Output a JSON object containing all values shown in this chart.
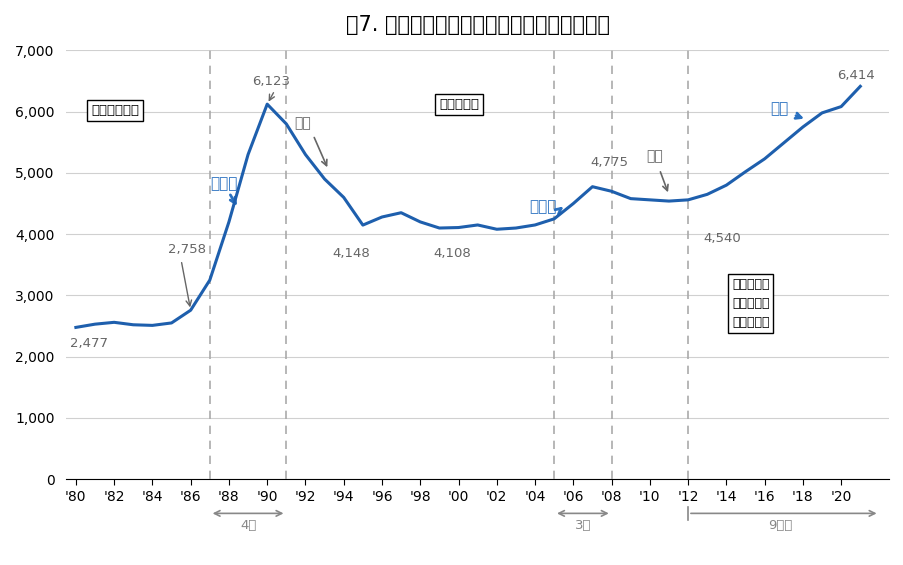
{
  "title": "図7. 首都圏・新築マンション価格の長期推移",
  "title_fontsize": 15,
  "line_color": "#1e5fad",
  "background_color": "#ffffff",
  "years": [
    1980,
    1981,
    1982,
    1983,
    1984,
    1985,
    1986,
    1987,
    1988,
    1989,
    1990,
    1991,
    1992,
    1993,
    1994,
    1995,
    1996,
    1997,
    1998,
    1999,
    2000,
    2001,
    2002,
    2003,
    2004,
    2005,
    2006,
    2007,
    2008,
    2009,
    2010,
    2011,
    2012,
    2013,
    2014,
    2015,
    2016,
    2017,
    2018,
    2019,
    2020,
    2021
  ],
  "values": [
    2477,
    2530,
    2560,
    2520,
    2510,
    2550,
    2758,
    3250,
    4200,
    5300,
    6123,
    5800,
    5300,
    4900,
    4600,
    4148,
    4280,
    4350,
    4200,
    4100,
    4108,
    4150,
    4080,
    4100,
    4150,
    4250,
    4500,
    4775,
    4700,
    4580,
    4560,
    4540,
    4560,
    4650,
    4800,
    5020,
    5230,
    5490,
    5750,
    5980,
    6083,
    6414
  ],
  "ylim": [
    0,
    7000
  ],
  "yticks": [
    0,
    1000,
    2000,
    3000,
    4000,
    5000,
    6000,
    7000
  ],
  "xtick_labels": [
    "'80",
    "'82",
    "'84",
    "'86",
    "'88",
    "'90",
    "'92",
    "'94",
    "'96",
    "'98",
    "'00",
    "'02",
    "'04",
    "'06",
    "'08",
    "'10",
    "'12",
    "'14",
    "'16",
    "'18",
    "'20"
  ],
  "xtick_years": [
    1980,
    1982,
    1984,
    1986,
    1988,
    1990,
    1992,
    1994,
    1996,
    1998,
    2000,
    2002,
    2004,
    2006,
    2008,
    2010,
    2012,
    2014,
    2016,
    2018,
    2020
  ],
  "dashed_lines_x": [
    1987,
    1991,
    2005,
    2008,
    2012
  ],
  "blue": "#2970c0",
  "gray": "#666666",
  "grid_color": "#d0d0d0"
}
